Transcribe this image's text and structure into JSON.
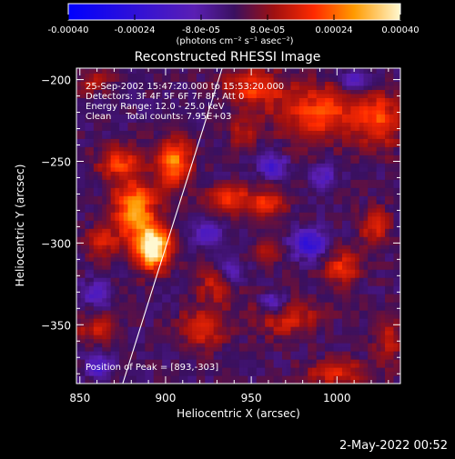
{
  "colorbar": {
    "ticks": [
      "-0.00040",
      "-0.00024",
      "-8.0e-05",
      "8.0e-05",
      "0.00024",
      "0.00040"
    ],
    "units": "(photons cm⁻² s⁻¹ asec⁻²)",
    "range": [
      -0.0004,
      0.0004
    ],
    "stops": [
      {
        "t": 0.0,
        "color": "#0000ff"
      },
      {
        "t": 0.38,
        "color": "#5a1fb4"
      },
      {
        "t": 0.5,
        "color": "#3a1060"
      },
      {
        "t": 0.62,
        "color": "#a01010"
      },
      {
        "t": 0.74,
        "color": "#ff2a00"
      },
      {
        "t": 0.86,
        "color": "#ff9a00"
      },
      {
        "t": 1.0,
        "color": "#fff8d0"
      }
    ]
  },
  "title": "Reconstructed RHESSI Image",
  "annotations": {
    "line1": "25-Sep-2002 15:47:20.000 to 15:53:20.000",
    "line2": "Detectors: 3F 4F 5F 6F 7F 8F, Att 0",
    "line3": "Energy Range: 12.0 - 25.0 keV",
    "line4": "Clean     Total counts: 7.95E+03",
    "peak": "Position of Peak = [893,-303]"
  },
  "footer": {
    "timestamp": "2-May-2022 00:52"
  },
  "chart_data": {
    "type": "heatmap",
    "title": "Reconstructed RHESSI Image",
    "xlabel": "Heliocentric X (arcsec)",
    "ylabel": "Heliocentric Y (arcsec)",
    "xlim": [
      848,
      1037
    ],
    "ylim": [
      -386,
      -193
    ],
    "xticks": [
      850,
      900,
      950,
      1000
    ],
    "yticks": [
      -200,
      -250,
      -300,
      -350
    ],
    "xtick_labels": [
      "850",
      "900",
      "950",
      "1000"
    ],
    "ytick_labels": [
      "−200",
      "−250",
      "−300",
      "−350"
    ],
    "limb_line": [
      [
        875,
        -386
      ],
      [
        933,
        -193
      ]
    ],
    "peak": [
      893,
      -303
    ],
    "sources": [
      {
        "x": 893,
        "y": -303,
        "sx": 7,
        "sy": 9,
        "amp": 1.25
      },
      {
        "x": 882,
        "y": -280,
        "sx": 9,
        "sy": 14,
        "amp": 0.85
      },
      {
        "x": 905,
        "y": -250,
        "sx": 7,
        "sy": 10,
        "amp": 0.8
      },
      {
        "x": 872,
        "y": -250,
        "sx": 8,
        "sy": 7,
        "amp": 0.55
      },
      {
        "x": 862,
        "y": -300,
        "sx": 6,
        "sy": 7,
        "amp": 0.45
      },
      {
        "x": 938,
        "y": -273,
        "sx": 9,
        "sy": 6,
        "amp": 0.55
      },
      {
        "x": 960,
        "y": -275,
        "sx": 7,
        "sy": 6,
        "amp": 0.5
      },
      {
        "x": 990,
        "y": -220,
        "sx": 18,
        "sy": 12,
        "amp": 0.6
      },
      {
        "x": 1025,
        "y": -225,
        "sx": 9,
        "sy": 12,
        "amp": 0.55
      },
      {
        "x": 950,
        "y": -205,
        "sx": 12,
        "sy": 8,
        "amp": 0.55
      },
      {
        "x": 1003,
        "y": -315,
        "sx": 7,
        "sy": 8,
        "amp": 0.5
      },
      {
        "x": 1022,
        "y": -290,
        "sx": 6,
        "sy": 9,
        "amp": 0.45
      },
      {
        "x": 970,
        "y": -345,
        "sx": 14,
        "sy": 8,
        "amp": 0.45
      },
      {
        "x": 1000,
        "y": -380,
        "sx": 14,
        "sy": 6,
        "amp": 0.45
      },
      {
        "x": 860,
        "y": -352,
        "sx": 9,
        "sy": 6,
        "amp": 0.4
      },
      {
        "x": 922,
        "y": -352,
        "sx": 10,
        "sy": 9,
        "amp": 0.45
      },
      {
        "x": 930,
        "y": -325,
        "sx": 8,
        "sy": 8,
        "amp": 0.4
      },
      {
        "x": 945,
        "y": -232,
        "sx": 6,
        "sy": 6,
        "amp": 0.35
      },
      {
        "x": 858,
        "y": -200,
        "sx": 7,
        "sy": 6,
        "amp": 0.35
      },
      {
        "x": 1030,
        "y": -360,
        "sx": 6,
        "sy": 10,
        "amp": 0.35
      },
      {
        "x": 960,
        "y": -305,
        "sx": 6,
        "sy": 6,
        "amp": 0.3
      }
    ],
    "minima": [
      {
        "x": 963,
        "y": -253,
        "sx": 5,
        "sy": 5,
        "amp": 0.6
      },
      {
        "x": 963,
        "y": -337,
        "sx": 5,
        "sy": 5,
        "amp": 0.6
      },
      {
        "x": 984,
        "y": -300,
        "sx": 7,
        "sy": 6,
        "amp": 0.7
      },
      {
        "x": 925,
        "y": -293,
        "sx": 5,
        "sy": 5,
        "amp": 0.5
      },
      {
        "x": 938,
        "y": -318,
        "sx": 5,
        "sy": 5,
        "amp": 0.45
      },
      {
        "x": 860,
        "y": -330,
        "sx": 6,
        "sy": 5,
        "amp": 0.45
      },
      {
        "x": 862,
        "y": -375,
        "sx": 5,
        "sy": 5,
        "amp": 0.5
      },
      {
        "x": 1010,
        "y": -200,
        "sx": 6,
        "sy": 5,
        "amp": 0.45
      },
      {
        "x": 992,
        "y": -260,
        "sx": 5,
        "sy": 5,
        "amp": 0.4
      }
    ]
  }
}
